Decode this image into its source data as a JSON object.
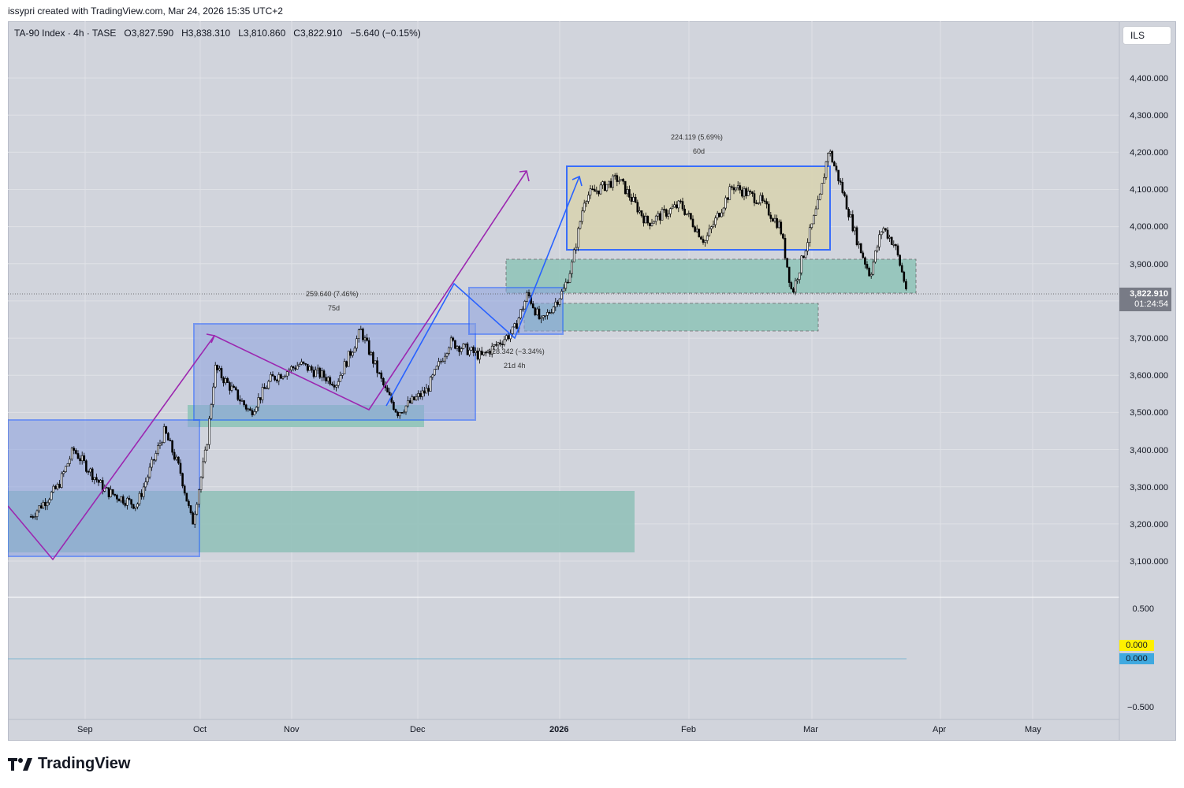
{
  "caption": "issypri created with TradingView.com, Mar 24, 2026 15:35 UTC+2",
  "header": {
    "symbol": "TA-90 Index · 4h · TASE",
    "open": "O3,827.590",
    "high": "H3,838.310",
    "low": "L3,810.860",
    "close": "C3,822.910",
    "change": "−5.640 (−0.15%)"
  },
  "currency": "ILS",
  "price_axis": [
    "4,400.000",
    "4,300.000",
    "4,200.000",
    "4,100.000",
    "4,000.000",
    "3,900.000",
    "3,700.000",
    "3,600.000",
    "3,500.000",
    "3,400.000",
    "3,300.000",
    "3,200.000",
    "3,100.000"
  ],
  "last_price": {
    "value": "3,822.910",
    "countdown": "01:24:54"
  },
  "indicator_axis": [
    "0.500",
    "−0.500"
  ],
  "indicator_values": [
    "0.000",
    "0.000"
  ],
  "time_axis": [
    "Sep",
    "Oct",
    "Nov",
    "Dec",
    "2026",
    "Feb",
    "Mar",
    "Apr",
    "May"
  ],
  "annotations": {
    "range1": "259.640 (7.46%)",
    "range1_days": "75d",
    "range2": "-128.342 (−3.34%)",
    "range2_days": "21d 4h",
    "range3": "224.119 (5.69%)",
    "range3_days": "60d"
  },
  "brand": "TradingView",
  "colors": {
    "up": "#ffffff",
    "down": "#000000",
    "blue_box": "#2962ff",
    "teal_zone": "#5fb7a5",
    "purple": "#9c27b0",
    "yellow": "#fff000",
    "cyan": "#3fa9e0"
  },
  "chart_data": {
    "type": "candlestick",
    "interval": "4h",
    "x_range": [
      "Aug 2025",
      "May 2026"
    ],
    "ylim": [
      3050,
      4450
    ],
    "close_path": [
      [
        "Aug 19",
        3220
      ],
      [
        "Aug 26",
        3300
      ],
      [
        "Aug 30",
        3400
      ],
      [
        "Sep 8",
        3290
      ],
      [
        "Sep 16",
        3250
      ],
      [
        "Sep 23",
        3450
      ],
      [
        "Sep 27",
        3340
      ],
      [
        "Sep 30",
        3200
      ],
      [
        "Oct 3",
        3400
      ],
      [
        "Oct 6",
        3620
      ],
      [
        "Oct 12",
        3560
      ],
      [
        "Oct 18",
        3500
      ],
      [
        "Oct 25",
        3590
      ],
      [
        "Nov 3",
        3630
      ],
      [
        "Nov 12",
        3580
      ],
      [
        "Nov 18",
        3720
      ],
      [
        "Nov 24",
        3560
      ],
      [
        "Nov 27",
        3500
      ],
      [
        "Dec 3",
        3560
      ],
      [
        "Dec 8",
        3690
      ],
      [
        "Dec 15",
        3650
      ],
      [
        "Dec 22",
        3720
      ],
      [
        "Dec 25",
        3820
      ],
      [
        "Dec 28",
        3740
      ],
      [
        "Jan 2",
        3830
      ],
      [
        "Jan 4",
        3900
      ],
      [
        "Jan 7",
        4080
      ],
      [
        "Jan 15",
        4130
      ],
      [
        "Jan 22",
        4010
      ],
      [
        "Jan 30",
        4060
      ],
      [
        "Feb 5",
        3960
      ],
      [
        "Feb 12",
        4110
      ],
      [
        "Feb 19",
        4070
      ],
      [
        "Feb 24",
        4000
      ],
      [
        "Feb 27",
        3820
      ],
      [
        "Mar 3",
        4080
      ],
      [
        "Mar 5",
        4210
      ],
      [
        "Mar 8",
        4110
      ],
      [
        "Mar 12",
        3960
      ],
      [
        "Mar 15",
        3870
      ],
      [
        "Mar 18",
        4000
      ],
      [
        "Mar 21",
        3950
      ],
      [
        "Mar 24",
        3823
      ]
    ]
  }
}
